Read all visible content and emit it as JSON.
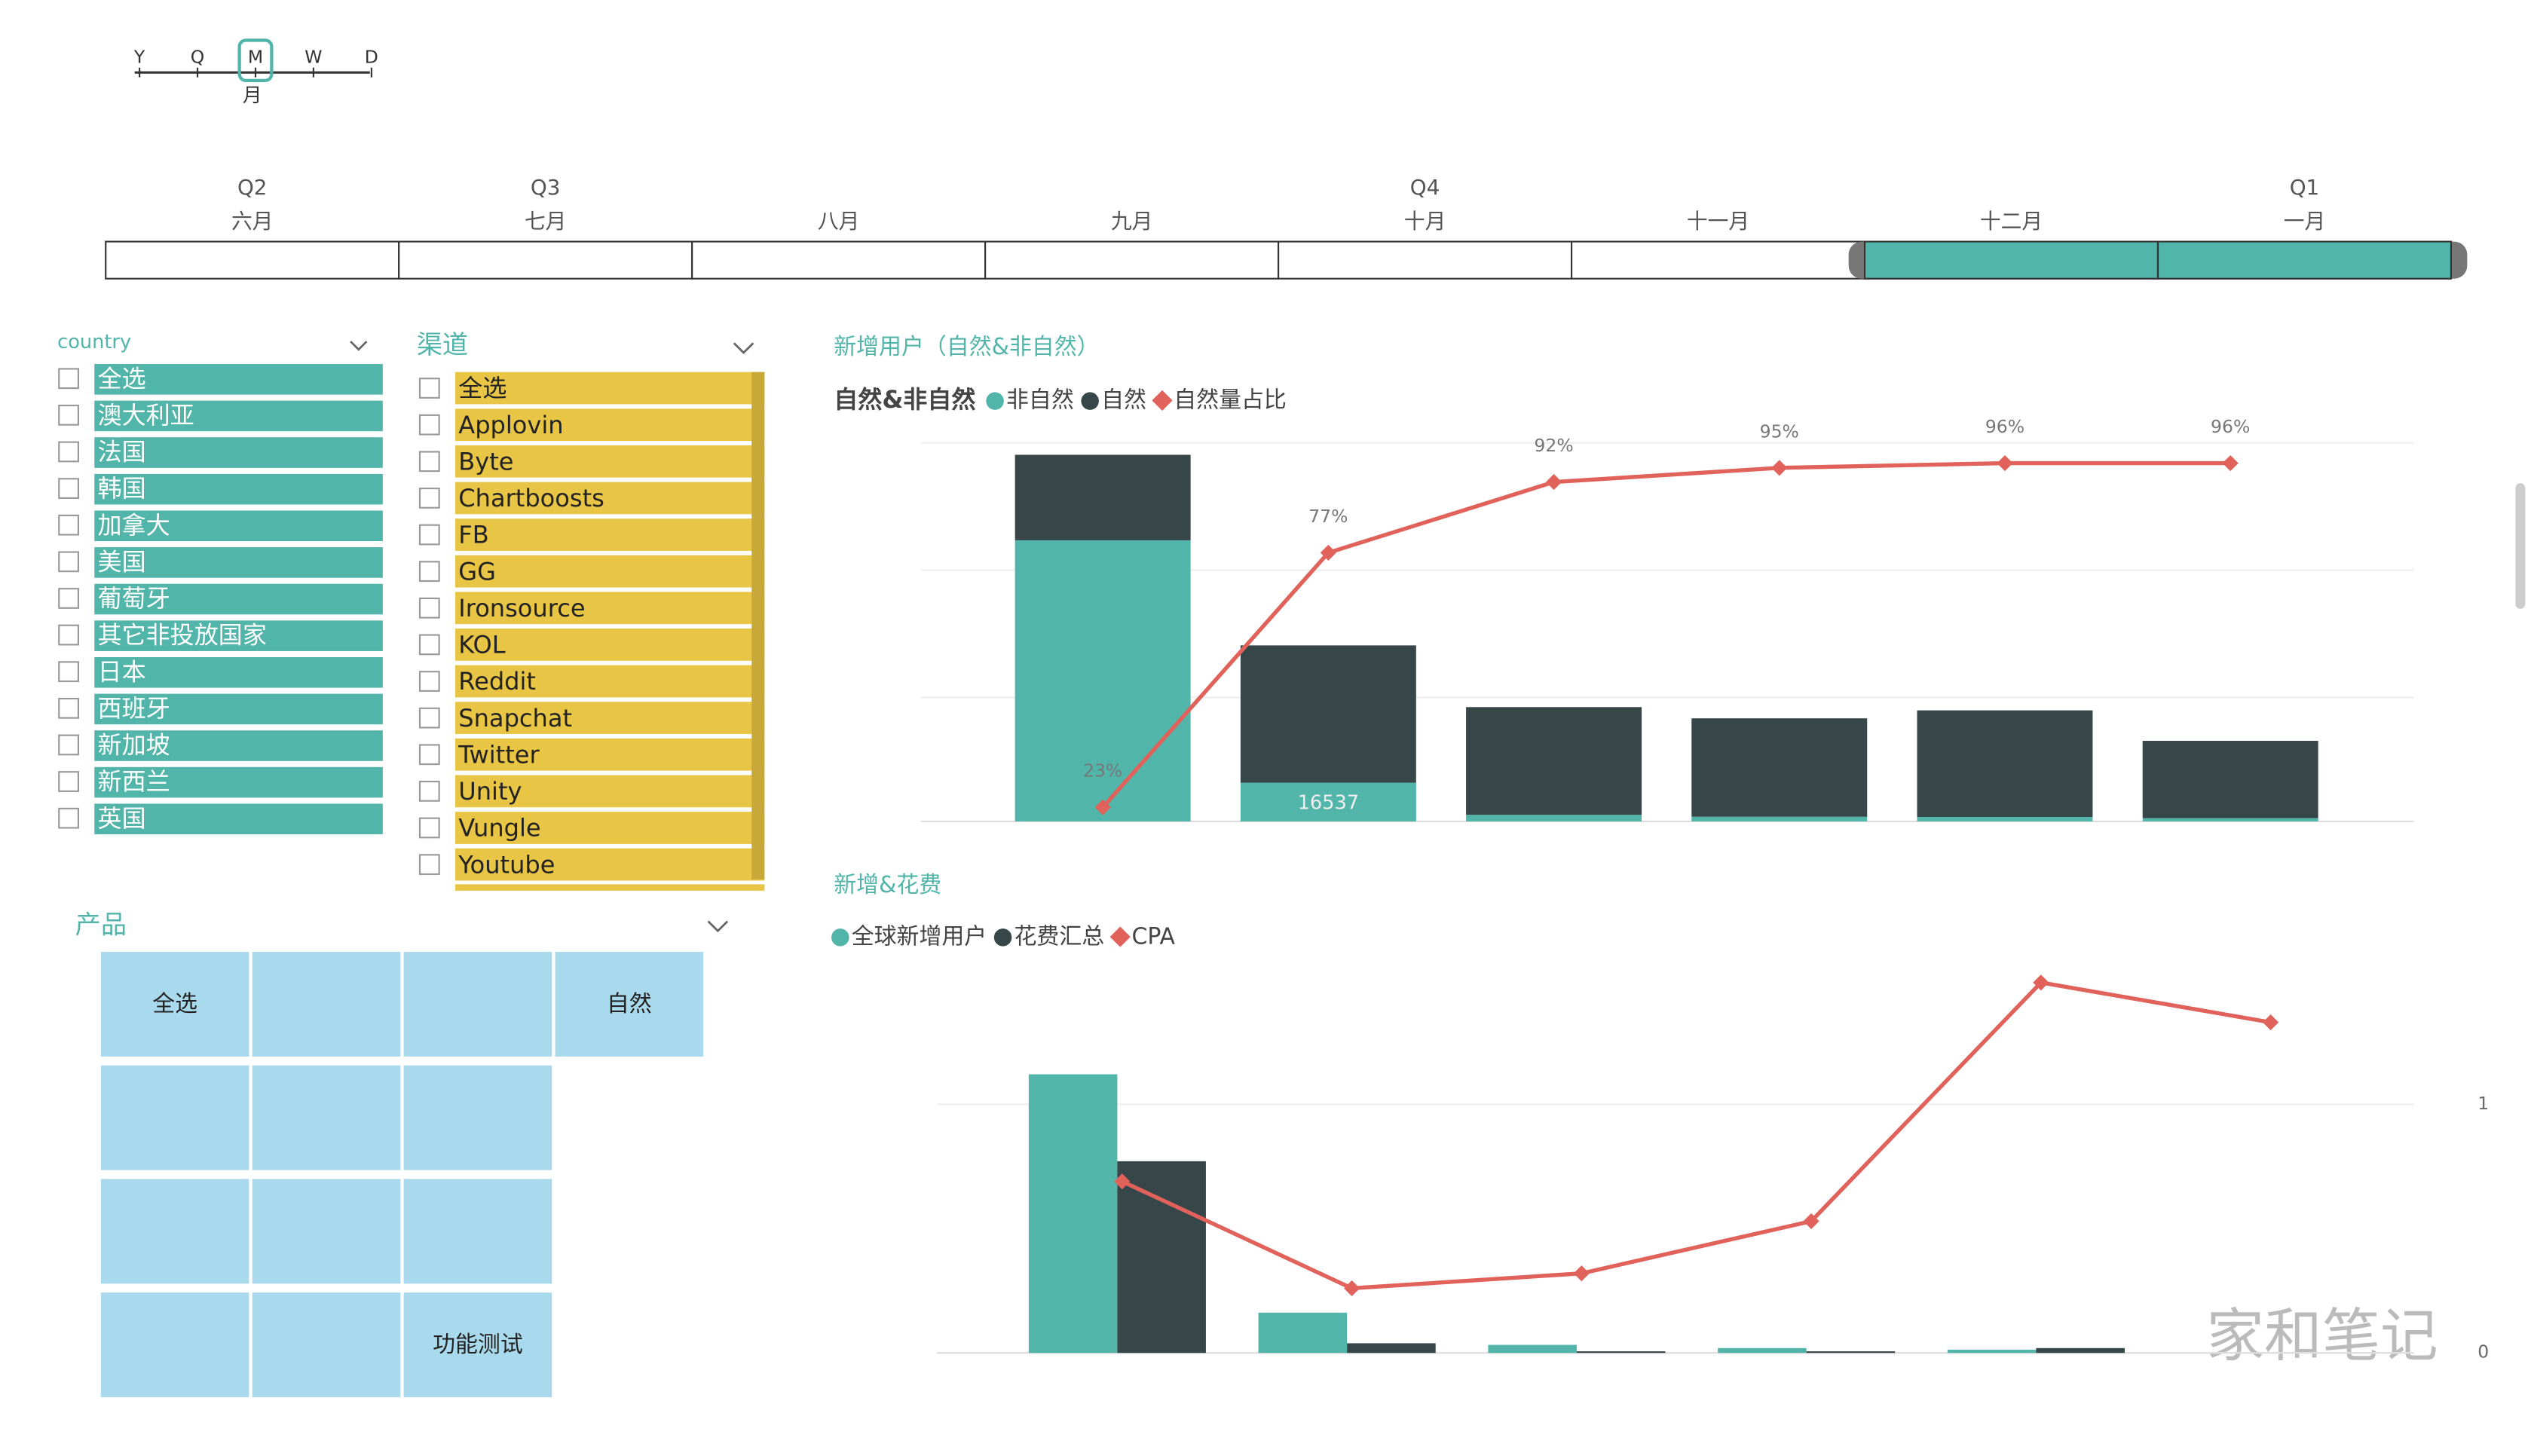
{
  "timeline": {
    "granularity": [
      "Y",
      "Q",
      "M",
      "W",
      "D"
    ],
    "granularity_selected": [
      false,
      false,
      true,
      false,
      false
    ],
    "granularity_label": "月",
    "quarters": [
      "Q2",
      "Q3",
      null,
      null,
      "Q4",
      null,
      null,
      "Q1"
    ],
    "months": [
      "六月",
      "七月",
      "八月",
      "九月",
      "十月",
      "十一月",
      "十二月",
      "一月"
    ],
    "selected": [
      false,
      false,
      false,
      false,
      false,
      false,
      true,
      true
    ]
  },
  "country": {
    "title": "country",
    "items": [
      "全选",
      "澳大利亚",
      "法国",
      "韩国",
      "加拿大",
      "美国",
      "葡萄牙",
      "其它非投放国家",
      "日本",
      "西班牙",
      "新加坡",
      "新西兰",
      "英国"
    ]
  },
  "channel": {
    "title": "渠道",
    "items": [
      "全选",
      "Applovin",
      "Byte",
      "Chartboosts",
      "FB",
      "GG",
      "Ironsource",
      "KOL",
      "Reddit",
      "Snapchat",
      "Twitter",
      "Unity",
      "Vungle",
      "Youtube"
    ]
  },
  "product": {
    "title": "产品",
    "tiles": [
      "全选",
      null,
      null,
      "自然",
      null,
      null,
      null,
      null,
      null,
      null,
      null,
      null,
      "功能测试"
    ]
  },
  "watermark": "家和笔记",
  "chart_data": [
    {
      "type": "combo",
      "title": "新增用户（自然&非自然）",
      "legend_title": "自然&非自然",
      "categories": [
        null,
        null,
        null,
        null,
        null,
        null
      ],
      "ylim": [
        0,
        165000
      ],
      "y2lim": [
        20,
        102
      ],
      "stacked": true,
      "series": [
        {
          "name": "非自然",
          "color": "#52b5a9",
          "kind": "bar",
          "values": [
            120000,
            16537,
            2800,
            2000,
            1900,
            1400
          ],
          "value_labels": [
            null,
            "16537",
            null,
            null,
            null,
            null
          ]
        },
        {
          "name": "自然",
          "color": "#364649",
          "kind": "bar",
          "values": [
            36500,
            58600,
            46000,
            42000,
            45500,
            33000
          ]
        },
        {
          "name": "自然量占比",
          "color": "#e0625a",
          "kind": "line",
          "axis": "y2",
          "values": [
            23,
            77,
            92,
            95,
            96,
            96
          ],
          "value_labels": [
            "23%",
            "77%",
            "92%",
            "95%",
            "96%",
            "96%"
          ]
        }
      ]
    },
    {
      "type": "combo",
      "title": "新增&花费",
      "categories": [
        null,
        null,
        null,
        null,
        null,
        null
      ],
      "ylim": [
        0,
        250
      ],
      "y2lim": [
        0,
        1.62
      ],
      "y2ticks": [
        0,
        1
      ],
      "stacked": false,
      "series": [
        {
          "name": "全球新增用户",
          "color": "#52b5a9",
          "kind": "bar",
          "values": [
            173,
            25,
            5,
            3,
            2,
            0
          ]
        },
        {
          "name": "花费汇总",
          "color": "#364649",
          "kind": "bar",
          "values": [
            119,
            6,
            1,
            1,
            3,
            0
          ]
        },
        {
          "name": "CPA",
          "color": "#e0625a",
          "kind": "line",
          "axis": "y2",
          "values": [
            0.69,
            0.26,
            0.32,
            0.53,
            1.49,
            1.33
          ]
        }
      ]
    }
  ]
}
